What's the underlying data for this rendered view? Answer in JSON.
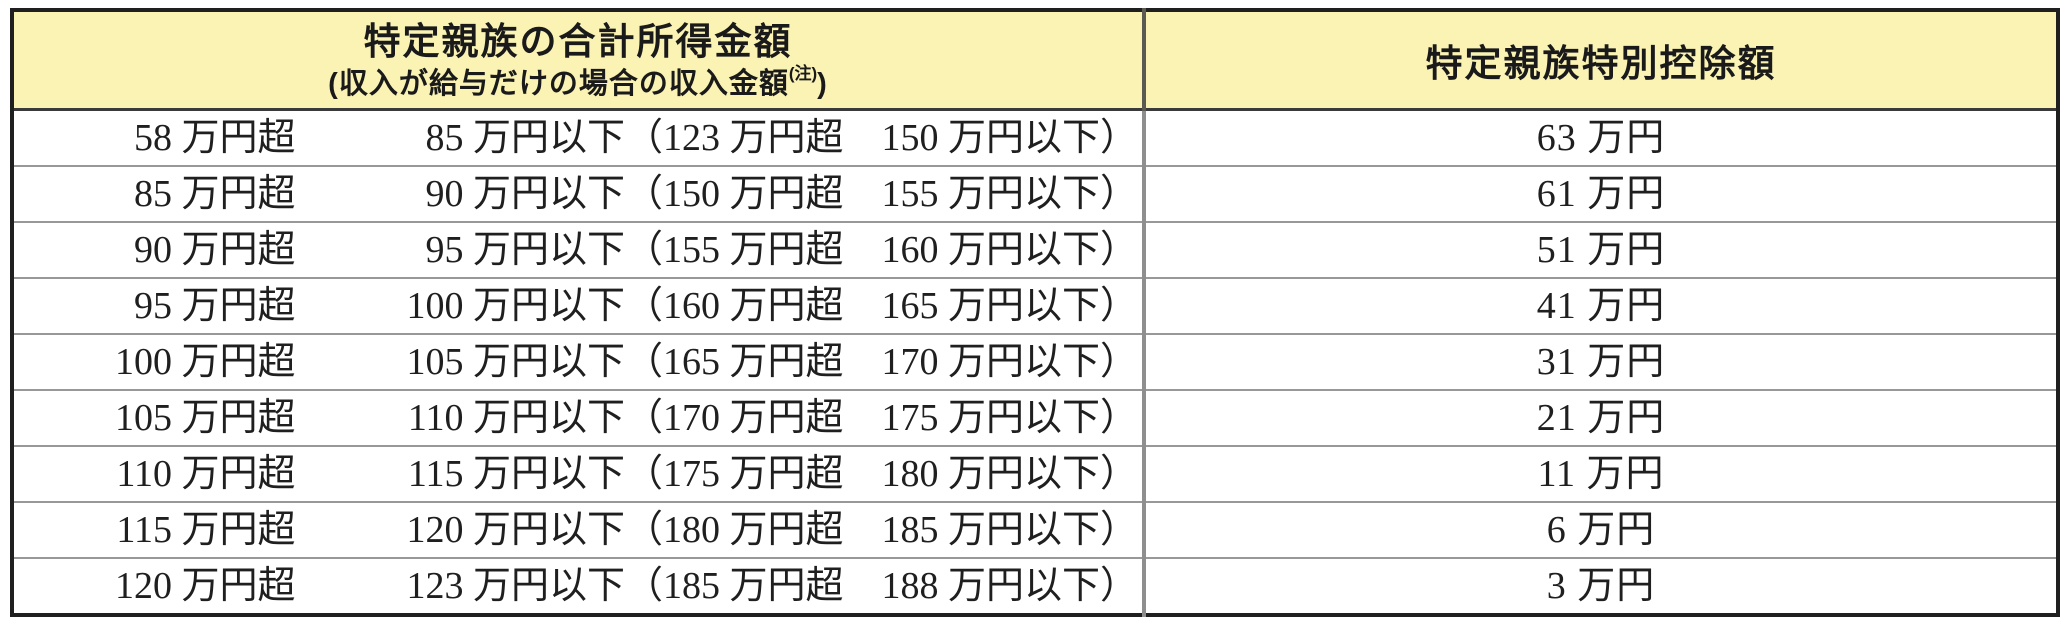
{
  "table": {
    "header": {
      "col1_line1": "特定親族の合計所得金額",
      "col1_line2_open": "(収入が給与だけの場合の収入金額",
      "col1_note": "(注)",
      "col1_line2_close": ")",
      "col2": "特定親族特別控除額"
    },
    "rows": [
      {
        "income_over": "58 万円超",
        "income_under": "85 万円以下",
        "salary_range": "（123 万円超　150 万円以下）",
        "deduction": "63 万円"
      },
      {
        "income_over": "85 万円超",
        "income_under": "90 万円以下",
        "salary_range": "（150 万円超　155 万円以下）",
        "deduction": "61 万円"
      },
      {
        "income_over": "90 万円超",
        "income_under": "95 万円以下",
        "salary_range": "（155 万円超　160 万円以下）",
        "deduction": "51 万円"
      },
      {
        "income_over": "95 万円超",
        "income_under": "100 万円以下",
        "salary_range": "（160 万円超　165 万円以下）",
        "deduction": "41 万円"
      },
      {
        "income_over": "100 万円超",
        "income_under": "105 万円以下",
        "salary_range": "（165 万円超　170 万円以下）",
        "deduction": "31 万円"
      },
      {
        "income_over": "105 万円超",
        "income_under": "110 万円以下",
        "salary_range": "（170 万円超　175 万円以下）",
        "deduction": "21 万円"
      },
      {
        "income_over": "110 万円超",
        "income_under": "115 万円以下",
        "salary_range": "（175 万円超　180 万円以下）",
        "deduction": "11 万円"
      },
      {
        "income_over": "115 万円超",
        "income_under": "120 万円以下",
        "salary_range": "（180 万円超　185 万円以下）",
        "deduction": "6 万円"
      },
      {
        "income_over": "120 万円超",
        "income_under": "123 万円以下",
        "salary_range": "（185 万円超　188 万円以下）",
        "deduction": "3 万円"
      }
    ],
    "colors": {
      "header_bg": "#faf3b4",
      "outer_border": "#1f1f1f",
      "row_divider": "#989898",
      "text": "#1f1f1f"
    }
  }
}
